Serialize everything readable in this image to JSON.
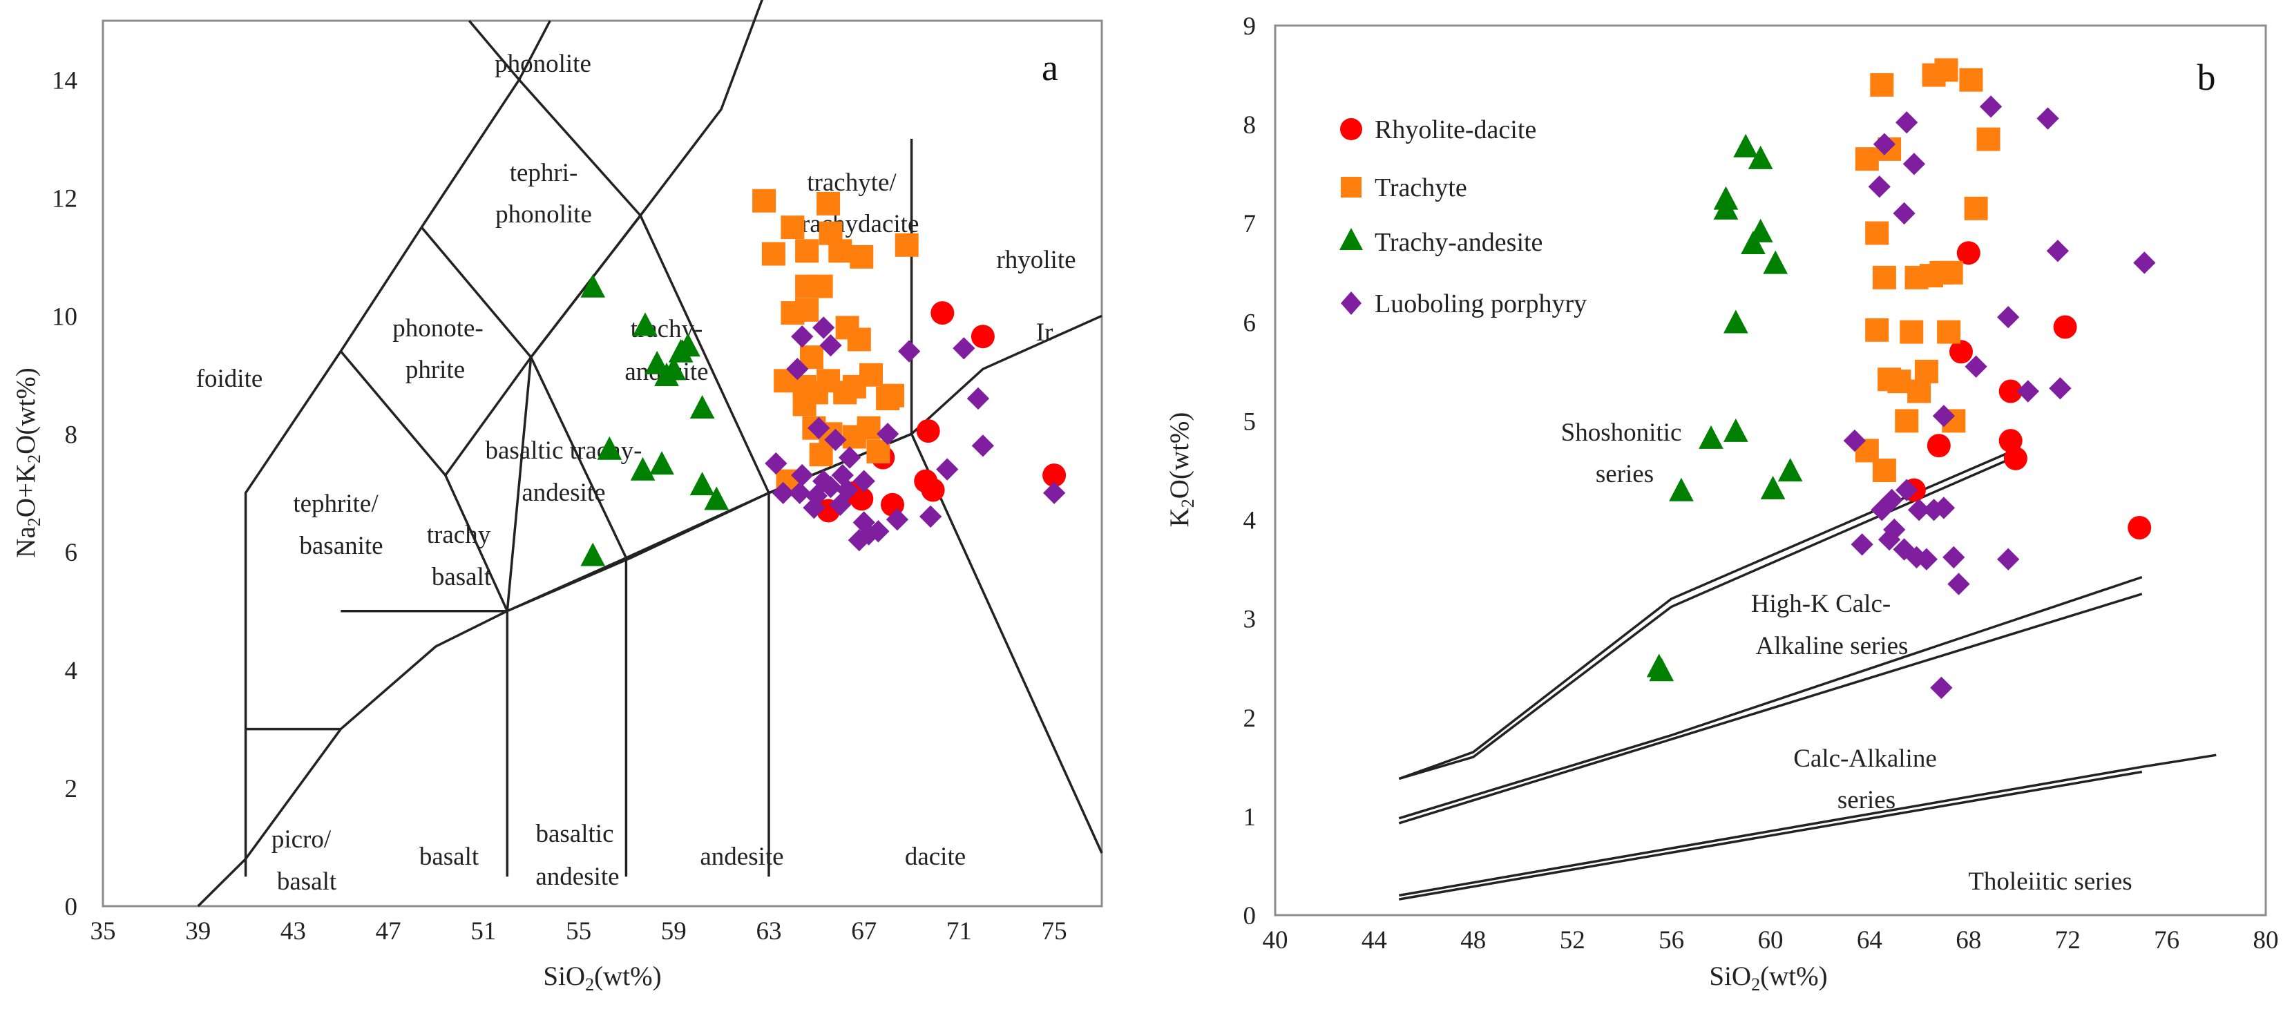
{
  "chart_data": [
    {
      "type": "scatter",
      "panel_label": "a",
      "xlabel": "SiO2(wt%)",
      "ylabel": "Na2O+K2O(wt%)",
      "xlim": [
        35,
        77
      ],
      "ylim": [
        0,
        15
      ],
      "xticks": [
        "35",
        "39",
        "43",
        "47",
        "51",
        "55",
        "59",
        "63",
        "67",
        "71",
        "75"
      ],
      "yticks": [
        "0",
        "2",
        "4",
        "6",
        "8",
        "10",
        "12",
        "14"
      ],
      "boundary_lines": [
        [
          [
            39,
            0
          ],
          [
            41,
            0.8
          ],
          [
            45,
            3
          ],
          [
            49,
            4.4
          ],
          [
            52,
            5
          ],
          [
            57.2,
            5.9
          ],
          [
            63,
            7
          ],
          [
            69,
            8
          ],
          [
            72,
            9.1
          ],
          [
            77,
            10
          ]
        ],
        [
          [
            41,
            0.5
          ],
          [
            41,
            7
          ],
          [
            45,
            9.4
          ],
          [
            48.4,
            11.5
          ],
          [
            52.5,
            14
          ],
          [
            53.8,
            15
          ]
        ],
        [
          [
            41,
            3
          ],
          [
            45,
            3
          ]
        ],
        [
          [
            45,
            5
          ],
          [
            52,
            5
          ]
        ],
        [
          [
            45,
            9.4
          ],
          [
            49.4,
            7.3
          ],
          [
            52,
            5
          ]
        ],
        [
          [
            52,
            0.5
          ],
          [
            52,
            5
          ],
          [
            57,
            5.9
          ]
        ],
        [
          [
            52,
            5
          ],
          [
            53,
            9.3
          ],
          [
            57.6,
            11.7
          ],
          [
            61,
            13.5
          ],
          [
            63.5,
            16.2
          ]
        ],
        [
          [
            57,
            0.5
          ],
          [
            57,
            5.9
          ]
        ],
        [
          [
            49.4,
            7.3
          ],
          [
            53,
            9.3
          ]
        ],
        [
          [
            57,
            5.9
          ],
          [
            63,
            7
          ]
        ],
        [
          [
            53,
            9.3
          ],
          [
            57.6,
            11.7
          ]
        ],
        [
          [
            48.4,
            11.5
          ],
          [
            53,
            9.3
          ],
          [
            57,
            5.9
          ]
        ],
        [
          [
            52.5,
            14
          ],
          [
            57.6,
            11.7
          ]
        ],
        [
          [
            57.6,
            11.7
          ],
          [
            63,
            7
          ]
        ],
        [
          [
            63,
            0.5
          ],
          [
            63,
            7
          ],
          [
            69,
            8
          ]
        ],
        [
          [
            69,
            13
          ],
          [
            69,
            8
          ],
          [
            77,
            0.9
          ]
        ],
        [
          [
            50.4,
            15
          ],
          [
            52.5,
            14
          ]
        ]
      ],
      "field_labels": {
        "phonolite": "phonolite",
        "tephriphonolite_1": "tephri-",
        "tephriphonolite_2": "phonolite",
        "phonotephrite_1": "phonote-",
        "phonotephrite_2": "phrite",
        "foidite": "foidite",
        "tephrite_1": "tephrite/",
        "tephrite_2": "basanite",
        "trachybasalt_1": "trachy",
        "trachybasalt_2": "basalt",
        "basaltic_trachyandesite_1": "basaltic trachy-",
        "basaltic_trachyandesite_2": "andesite",
        "trachyandesite_1": "trachy-",
        "trachyandesite_2": "andesite",
        "trachyte_1": "trachyte/",
        "trachyte_2": "trachydacite",
        "rhyolite": "rhyolite",
        "ir": "Ir",
        "picrobasalt_1": "picro/",
        "picrobasalt_2": "basalt",
        "basalt": "basalt",
        "basaltic_andesite_1": "basaltic",
        "basaltic_andesite_2": "andesite",
        "andesite": "andesite",
        "dacite": "dacite"
      },
      "series": [
        {
          "name": "Rhyolite-dacite",
          "marker": "circle",
          "color": "#ff0000",
          "points": [
            [
              70.3,
              10.05
            ],
            [
              72,
              9.65
            ],
            [
              69.7,
              8.05
            ],
            [
              69.6,
              7.2
            ],
            [
              69.9,
              7.05
            ],
            [
              75,
              7.3
            ],
            [
              67.8,
              7.6
            ],
            [
              68.2,
              6.8
            ],
            [
              66.6,
              7.0
            ],
            [
              65.5,
              6.7
            ],
            [
              66.9,
              6.9
            ]
          ]
        },
        {
          "name": "Trachyte",
          "marker": "square",
          "color": "#ff7f0e",
          "points": [
            [
              62.8,
              11.95
            ],
            [
              63.2,
              11.05
            ],
            [
              64.0,
              11.5
            ],
            [
              64.6,
              11.1
            ],
            [
              65.5,
              11.9
            ],
            [
              65.6,
              11.4
            ],
            [
              66.0,
              11.1
            ],
            [
              66.9,
              11.0
            ],
            [
              68.8,
              11.2
            ],
            [
              64.6,
              10.5
            ],
            [
              65.2,
              10.5
            ],
            [
              64.0,
              10.05
            ],
            [
              64.6,
              10.1
            ],
            [
              66.3,
              9.8
            ],
            [
              66.8,
              9.6
            ],
            [
              64.8,
              9.3
            ],
            [
              67.3,
              9.0
            ],
            [
              63.7,
              8.9
            ],
            [
              64.5,
              8.8
            ],
            [
              65.0,
              8.7
            ],
            [
              65.5,
              8.9
            ],
            [
              66.2,
              8.7
            ],
            [
              66.6,
              8.8
            ],
            [
              68.0,
              8.6
            ],
            [
              68.2,
              8.65
            ],
            [
              64.5,
              8.5
            ],
            [
              64.9,
              8.1
            ],
            [
              65.6,
              8.0
            ],
            [
              66.6,
              7.95
            ],
            [
              67.2,
              8.1
            ],
            [
              65.2,
              7.65
            ],
            [
              63.8,
              7.2
            ],
            [
              67.6,
              7.7
            ]
          ]
        },
        {
          "name": "Trachy-andesite",
          "marker": "triangle",
          "color": "#008000",
          "points": [
            [
              55.6,
              10.5
            ],
            [
              57.8,
              9.85
            ],
            [
              58.3,
              9.2
            ],
            [
              58.7,
              9.0
            ],
            [
              59.3,
              9.4
            ],
            [
              59.6,
              9.5
            ],
            [
              59.0,
              9.1
            ],
            [
              60.2,
              8.45
            ],
            [
              57.7,
              7.4
            ],
            [
              58.5,
              7.5
            ],
            [
              56.3,
              7.75
            ],
            [
              60.2,
              7.15
            ],
            [
              60.8,
              6.9
            ],
            [
              55.6,
              5.95
            ]
          ]
        },
        {
          "name": "Luoboling porphyry",
          "marker": "diamond",
          "color": "#7f1f9f",
          "points": [
            [
              64.4,
              9.65
            ],
            [
              65.3,
              9.8
            ],
            [
              65.6,
              9.5
            ],
            [
              68.9,
              9.4
            ],
            [
              71.2,
              9.45
            ],
            [
              64.2,
              9.1
            ],
            [
              71.8,
              8.6
            ],
            [
              65.1,
              8.1
            ],
            [
              65.8,
              7.9
            ],
            [
              66.4,
              7.6
            ],
            [
              68.0,
              8.0
            ],
            [
              72.0,
              7.8
            ],
            [
              63.3,
              7.5
            ],
            [
              64.4,
              7.3
            ],
            [
              65.3,
              7.2
            ],
            [
              66.1,
              7.3
            ],
            [
              67.0,
              7.2
            ],
            [
              63.6,
              7.0
            ],
            [
              64.3,
              7.0
            ],
            [
              65.0,
              6.95
            ],
            [
              65.6,
              7.1
            ],
            [
              66.3,
              7.05
            ],
            [
              64.9,
              6.75
            ],
            [
              66.0,
              6.8
            ],
            [
              67.0,
              6.5
            ],
            [
              67.6,
              6.35
            ],
            [
              68.4,
              6.55
            ],
            [
              66.8,
              6.2
            ],
            [
              67.2,
              6.3
            ],
            [
              69.8,
              6.6
            ],
            [
              75.0,
              7.0
            ],
            [
              70.5,
              7.4
            ]
          ]
        }
      ]
    },
    {
      "type": "scatter",
      "panel_label": "b",
      "xlabel": "SiO2(wt%)",
      "ylabel": "K2O(wt%)",
      "xlim": [
        40,
        80
      ],
      "ylim": [
        0,
        9
      ],
      "xticks": [
        "40",
        "44",
        "48",
        "52",
        "56",
        "60",
        "64",
        "68",
        "72",
        "76",
        "80"
      ],
      "yticks": [
        "0",
        "1",
        "2",
        "3",
        "4",
        "5",
        "6",
        "7",
        "8",
        "9"
      ],
      "legend_position": "top-left",
      "boundary_lines": [
        [
          [
            45,
            1.38
          ],
          [
            48,
            1.65
          ],
          [
            56,
            3.2
          ],
          [
            70,
            4.72
          ]
        ],
        [
          [
            45,
            1.38
          ],
          [
            48,
            1.6
          ],
          [
            56,
            3.12
          ],
          [
            70,
            4.65
          ]
        ],
        [
          [
            45,
            0.98
          ],
          [
            56,
            1.82
          ],
          [
            75,
            3.42
          ]
        ],
        [
          [
            45,
            0.93
          ],
          [
            56,
            1.78
          ],
          [
            75,
            3.25
          ]
        ],
        [
          [
            45,
            0.2
          ],
          [
            75,
            1.5
          ],
          [
            78,
            1.62
          ]
        ],
        [
          [
            45,
            0.16
          ],
          [
            75,
            1.45
          ]
        ]
      ],
      "series_labels": {
        "shoshonitic_1": "Shoshonitic",
        "shoshonitic_2": "series",
        "highk_1": "High-K Calc-",
        "highk_2": "Alkaline series",
        "calc_1": "Calc-Alkaline",
        "calc_2": "series",
        "tholeiitic": "Tholeiitic series"
      },
      "series": [
        {
          "name": "Rhyolite-dacite",
          "marker": "circle",
          "color": "#ff0000",
          "points": [
            [
              68.0,
              6.7
            ],
            [
              71.9,
              5.95
            ],
            [
              67.7,
              5.7
            ],
            [
              69.7,
              5.3
            ],
            [
              66.8,
              4.75
            ],
            [
              69.7,
              4.8
            ],
            [
              69.9,
              4.62
            ],
            [
              65.8,
              4.3
            ],
            [
              74.9,
              3.92
            ]
          ]
        },
        {
          "name": "Trachyte",
          "marker": "square",
          "color": "#ff7f0e",
          "points": [
            [
              64.5,
              8.4
            ],
            [
              66.6,
              8.5
            ],
            [
              67.1,
              8.55
            ],
            [
              68.1,
              8.45
            ],
            [
              68.8,
              7.85
            ],
            [
              63.9,
              7.65
            ],
            [
              64.8,
              7.75
            ],
            [
              68.3,
              7.15
            ],
            [
              64.3,
              6.9
            ],
            [
              64.6,
              6.45
            ],
            [
              65.9,
              6.45
            ],
            [
              66.5,
              6.47
            ],
            [
              66.9,
              6.5
            ],
            [
              67.3,
              6.5
            ],
            [
              64.3,
              5.92
            ],
            [
              65.7,
              5.9
            ],
            [
              67.2,
              5.9
            ],
            [
              66.3,
              5.5
            ],
            [
              64.8,
              5.42
            ],
            [
              65.2,
              5.4
            ],
            [
              66.0,
              5.3
            ],
            [
              65.5,
              5.0
            ],
            [
              67.4,
              5.0
            ],
            [
              63.9,
              4.7
            ],
            [
              64.6,
              4.5
            ]
          ]
        },
        {
          "name": "Trachy-andesite",
          "marker": "triangle",
          "color": "#008000",
          "points": [
            [
              59.0,
              7.78
            ],
            [
              59.6,
              7.66
            ],
            [
              58.2,
              7.25
            ],
            [
              58.2,
              7.15
            ],
            [
              59.6,
              6.92
            ],
            [
              59.3,
              6.8
            ],
            [
              60.2,
              6.6
            ],
            [
              58.6,
              6.0
            ],
            [
              57.6,
              4.83
            ],
            [
              58.6,
              4.9
            ],
            [
              60.8,
              4.5
            ],
            [
              56.4,
              4.3
            ],
            [
              60.1,
              4.32
            ],
            [
              55.5,
              2.52
            ],
            [
              55.6,
              2.48
            ]
          ]
        },
        {
          "name": "Luoboling porphyry",
          "marker": "diamond",
          "color": "#7f1f9f",
          "points": [
            [
              65.5,
              8.02
            ],
            [
              68.9,
              8.18
            ],
            [
              71.2,
              8.06
            ],
            [
              64.6,
              7.8
            ],
            [
              65.8,
              7.6
            ],
            [
              64.4,
              7.37
            ],
            [
              65.4,
              7.1
            ],
            [
              71.6,
              6.72
            ],
            [
              75.1,
              6.6
            ],
            [
              69.6,
              6.05
            ],
            [
              70.4,
              5.3
            ],
            [
              71.7,
              5.33
            ],
            [
              68.3,
              5.55
            ],
            [
              67.0,
              5.05
            ],
            [
              63.4,
              4.8
            ],
            [
              64.9,
              4.2
            ],
            [
              65.5,
              4.3
            ],
            [
              64.5,
              4.1
            ],
            [
              65.0,
              3.9
            ],
            [
              66.0,
              4.1
            ],
            [
              66.6,
              4.1
            ],
            [
              67.0,
              4.12
            ],
            [
              63.7,
              3.75
            ],
            [
              64.8,
              3.8
            ],
            [
              65.4,
              3.7
            ],
            [
              65.9,
              3.62
            ],
            [
              66.3,
              3.6
            ],
            [
              67.4,
              3.62
            ],
            [
              69.6,
              3.6
            ],
            [
              67.6,
              3.35
            ],
            [
              66.9,
              2.3
            ]
          ]
        }
      ]
    }
  ]
}
